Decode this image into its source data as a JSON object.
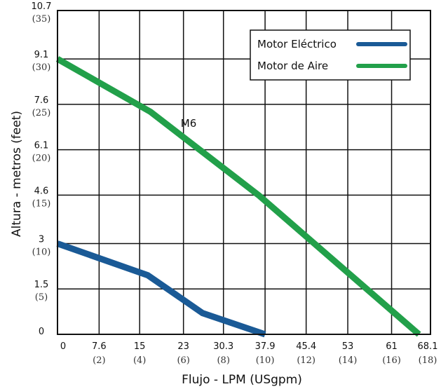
{
  "chart_data": {
    "type": "line",
    "xlabel": "Flujo - LPM (USgpm)",
    "ylabel": "Altura - metros (feet)",
    "xlim": [
      0,
      68.1
    ],
    "ylim": [
      0,
      10.7
    ],
    "x_ticks": [
      {
        "value": 0,
        "label": "0",
        "sub": ""
      },
      {
        "value": 7.6,
        "label": "7.6",
        "sub": "(2)"
      },
      {
        "value": 15,
        "label": "15",
        "sub": "(4)"
      },
      {
        "value": 23,
        "label": "23",
        "sub": "(6)"
      },
      {
        "value": 30.3,
        "label": "30.3",
        "sub": "(8)"
      },
      {
        "value": 37.9,
        "label": "37.9",
        "sub": "(10)"
      },
      {
        "value": 45.4,
        "label": "45.4",
        "sub": "(12)"
      },
      {
        "value": 53,
        "label": "53",
        "sub": "(14)"
      },
      {
        "value": 61,
        "label": "61",
        "sub": "(16)"
      },
      {
        "value": 68.1,
        "label": "68.1",
        "sub": "(18)"
      }
    ],
    "y_ticks": [
      {
        "value": 0,
        "label": "0",
        "sub": ""
      },
      {
        "value": 1.5,
        "label": "1.5",
        "sub": "(5)"
      },
      {
        "value": 3,
        "label": "3",
        "sub": "(10)"
      },
      {
        "value": 4.6,
        "label": "4.6",
        "sub": "(15)"
      },
      {
        "value": 6.1,
        "label": "6.1",
        "sub": "(20)"
      },
      {
        "value": 7.6,
        "label": "7.6",
        "sub": "(25)"
      },
      {
        "value": 9.1,
        "label": "9.1",
        "sub": "(30)"
      },
      {
        "value": 10.7,
        "label": "10.7",
        "sub": "(35)"
      }
    ],
    "series": [
      {
        "name": "Motor Eléctrico",
        "color": "#1a5a96",
        "points": [
          [
            0,
            3.0
          ],
          [
            16.5,
            1.95
          ],
          [
            26.5,
            0.7
          ],
          [
            37.9,
            0
          ]
        ]
      },
      {
        "name": "Motor de Aire",
        "color": "#22a04a",
        "points": [
          [
            0,
            9.1
          ],
          [
            17,
            7.35
          ],
          [
            36.7,
            4.6
          ],
          [
            66.0,
            0
          ]
        ]
      }
    ],
    "annotations": [
      {
        "text": "M6",
        "x": 22.5,
        "y": 6.85
      }
    ],
    "grid": true,
    "legend_position": "top-right"
  }
}
